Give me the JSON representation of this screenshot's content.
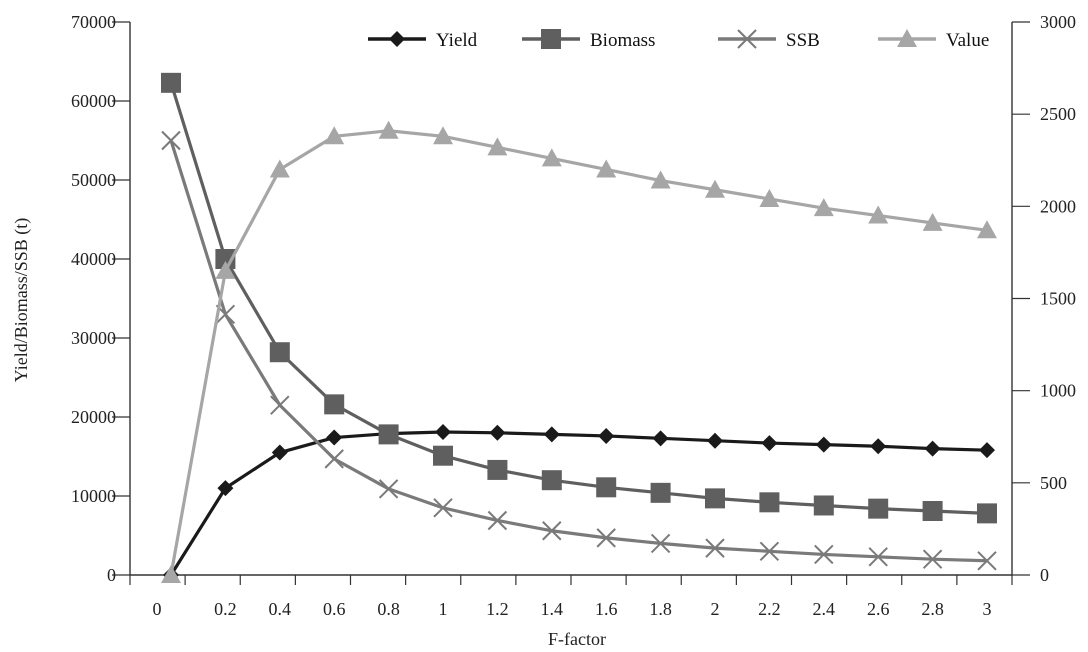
{
  "chart_data": {
    "type": "line",
    "xlabel": "F-factor",
    "ylabel": "Yield/Biomass/SSB (t)",
    "x_ticks": [
      "0",
      "0.2",
      "0.4",
      "0.6",
      "0.8",
      "1",
      "1.2",
      "1.4",
      "1.6",
      "1.8",
      "2",
      "2.2",
      "2.4",
      "2.6",
      "2.8",
      "3"
    ],
    "y_left_ticks": [
      "0",
      "10000",
      "20000",
      "30000",
      "40000",
      "50000",
      "60000",
      "70000"
    ],
    "y_right_ticks": [
      "0",
      "500",
      "1000",
      "1500",
      "2000",
      "2500",
      "3000"
    ],
    "ylim_left": [
      0,
      70000
    ],
    "ylim_right": [
      0,
      3000
    ],
    "grid": false,
    "legend_position": "top-right",
    "x": [
      0,
      0.2,
      0.4,
      0.6,
      0.8,
      1.0,
      1.2,
      1.4,
      1.6,
      1.8,
      2.0,
      2.2,
      2.4,
      2.6,
      2.8,
      3.0
    ],
    "series": [
      {
        "name": "Yield",
        "axis": "left",
        "marker": "diamond",
        "color": "#1a1a1a",
        "values": [
          0,
          11000,
          15500,
          17400,
          17900,
          18100,
          18000,
          17800,
          17600,
          17300,
          17000,
          16700,
          16500,
          16300,
          16000,
          15800
        ]
      },
      {
        "name": "Biomass",
        "axis": "left",
        "marker": "square",
        "color": "#5f5f5f",
        "values": [
          62300,
          40000,
          28200,
          21600,
          17800,
          15100,
          13300,
          12000,
          11100,
          10400,
          9700,
          9200,
          8800,
          8400,
          8100,
          7800
        ]
      },
      {
        "name": "SSB",
        "axis": "left",
        "marker": "x",
        "color": "#7a7a7a",
        "values": [
          55000,
          33000,
          21500,
          14700,
          10900,
          8500,
          6900,
          5600,
          4700,
          4000,
          3400,
          3000,
          2600,
          2300,
          2000,
          1800
        ]
      },
      {
        "name": "Value",
        "axis": "right",
        "marker": "triangle",
        "color": "#a6a6a6",
        "values": [
          0,
          1650,
          2200,
          2380,
          2410,
          2380,
          2320,
          2260,
          2200,
          2140,
          2090,
          2040,
          1990,
          1950,
          1910,
          1870
        ]
      }
    ]
  }
}
